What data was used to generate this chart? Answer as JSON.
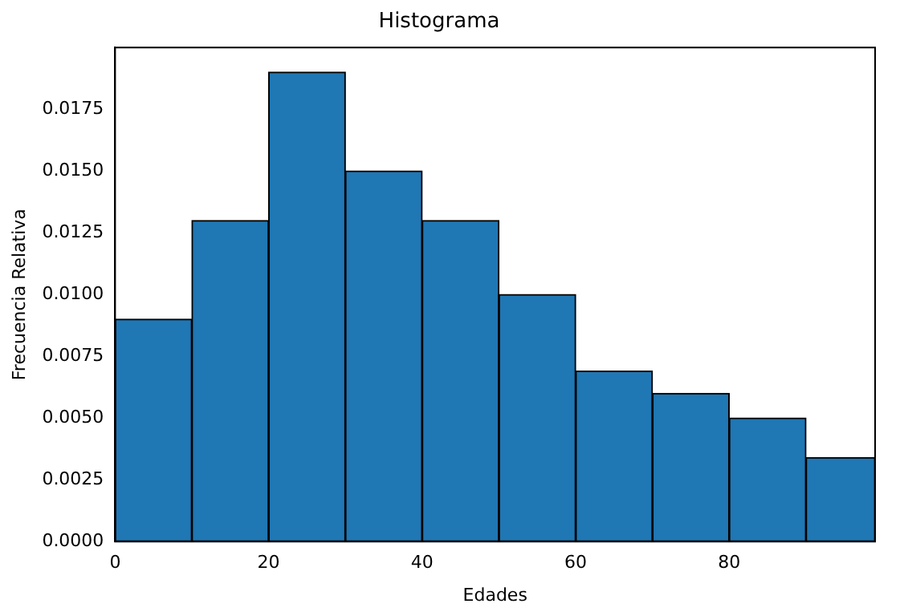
{
  "chart_data": {
    "type": "histogram",
    "title": "Histograma",
    "xlabel": "Edades",
    "ylabel": "Frecuencia Relativa",
    "bins": [
      0,
      10,
      20,
      30,
      40,
      50,
      60,
      70,
      80,
      90,
      99
    ],
    "values": [
      0.009,
      0.013,
      0.019,
      0.015,
      0.013,
      0.01,
      0.0069,
      0.006,
      0.005,
      0.0034
    ],
    "color": "#1f77b4",
    "xlim": [
      0,
      99
    ],
    "xticks": [
      0,
      20,
      40,
      60,
      80
    ],
    "ylim": [
      0,
      0.02
    ],
    "yticks": [
      {
        "value": 0,
        "label": "0.0000"
      },
      {
        "value": 0.0025,
        "label": "0.0025"
      },
      {
        "value": 0.005,
        "label": "0.0050"
      },
      {
        "value": 0.0075,
        "label": "0.0075"
      },
      {
        "value": 0.01,
        "label": "0.0100"
      },
      {
        "value": 0.0125,
        "label": "0.0125"
      },
      {
        "value": 0.015,
        "label": "0.0150"
      },
      {
        "value": 0.0175,
        "label": "0.0175"
      }
    ],
    "grid": false,
    "legend": false
  }
}
